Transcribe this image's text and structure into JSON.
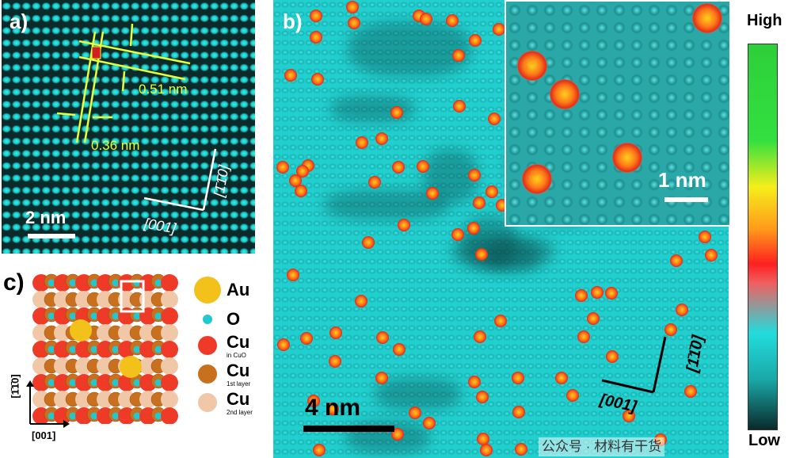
{
  "panel_a": {
    "label": "a)",
    "spacing_row": "0.51 nm",
    "spacing_col": "0.36 nm",
    "scale_bar": "2 nm",
    "axis_x": "[001]",
    "axis_y": "[1̄1̄0]"
  },
  "panel_b": {
    "label": "b)",
    "scale_bar": "4 nm",
    "inset_scale_bar": "1 nm",
    "axis_x": "[001]",
    "axis_y": "[1̄1̄0]"
  },
  "panel_c": {
    "label": "c)",
    "axis_x": "[001]",
    "axis_y": "[1̄1̄0]",
    "legend": [
      {
        "symbol": "Au",
        "sub": "",
        "color": "#f2c21a"
      },
      {
        "symbol": "O",
        "sub": "",
        "color": "#22c8d0"
      },
      {
        "symbol": "Cu",
        "sub": "in CuO",
        "color": "#f03a28"
      },
      {
        "symbol": "Cu",
        "sub": "1st layer",
        "color": "#c8701e"
      },
      {
        "symbol": "Cu",
        "sub": "2nd layer",
        "color": "#f0c8a8"
      }
    ]
  },
  "colorbar": {
    "high": "High",
    "low": "Low"
  },
  "watermark": "公众号 · 材料有干货"
}
